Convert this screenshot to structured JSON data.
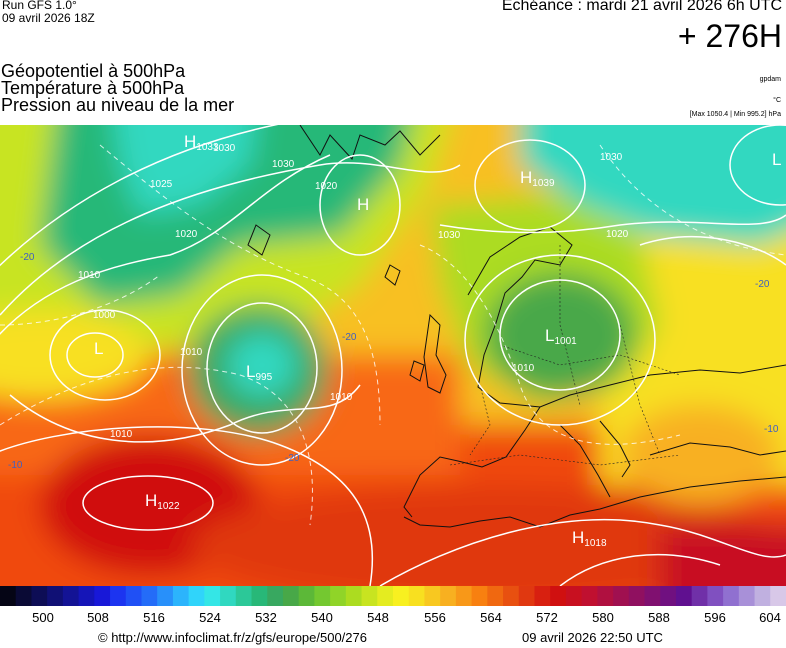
{
  "header": {
    "run_label": "Run GFS 1.0°",
    "run_date": "09 avril 2026 18Z",
    "valid_label": "Echéance : mardi 21 avril 2026 6h UTC",
    "lead_time": "+ 276H",
    "titles": [
      "Géopotentiel à 500hPa",
      "Température à 500hPa",
      "Pression au niveau de la mer"
    ],
    "unit_gpdam": "gpdam",
    "unit_celsius": "°C",
    "pressure_range": "[Max 1050.4 | Min 995.2] hPa"
  },
  "pressure_centers": [
    {
      "type": "H",
      "value": "1033",
      "region": "greenland"
    },
    {
      "type": "H",
      "value": "",
      "region": "norwegian-sea"
    },
    {
      "type": "H",
      "value": "1039",
      "region": "northern-scandinavia"
    },
    {
      "type": "L",
      "value": "",
      "region": "north-russia"
    },
    {
      "type": "L",
      "value": "",
      "region": "labrador-sea"
    },
    {
      "type": "L",
      "value": "995",
      "region": "north-atlantic"
    },
    {
      "type": "L",
      "value": "1001",
      "region": "poland"
    },
    {
      "type": "H",
      "value": "1022",
      "region": "azores"
    },
    {
      "type": "H",
      "value": "1018",
      "region": "libya"
    }
  ],
  "isobar_labels": [
    "1030",
    "1030",
    "1025",
    "1020",
    "1030",
    "1020",
    "1010",
    "1000",
    "1010",
    "1010",
    "1010",
    "1030",
    "1020",
    "1010"
  ],
  "isotherm_labels": [
    "-20",
    "-20",
    "-20",
    "-10",
    "-10",
    "-20"
  ],
  "colorbar": {
    "colors": [
      "#050515",
      "#0a0a35",
      "#0d0d55",
      "#101075",
      "#131395",
      "#1515b8",
      "#1818d8",
      "#1c34f0",
      "#2050f5",
      "#246cf8",
      "#2890fa",
      "#2cb4fc",
      "#30d4fa",
      "#34e6e6",
      "#30d8c0",
      "#2cc898",
      "#28b878",
      "#38a860",
      "#48a848",
      "#5cb838",
      "#74c830",
      "#90d428",
      "#acdc20",
      "#c8e420",
      "#e4ec20",
      "#f8f020",
      "#f8e020",
      "#f8c820",
      "#f8b020",
      "#f89818",
      "#f88010",
      "#f06810",
      "#e85010",
      "#e03810",
      "#d82010",
      "#d01010",
      "#c81020",
      "#c01030",
      "#b01040",
      "#a01050",
      "#901060",
      "#801070",
      "#701080",
      "#601090",
      "#7030a8",
      "#8050c0",
      "#9070d0",
      "#a890d8",
      "#c0b0e0",
      "#d8c8e8"
    ],
    "ticks": [
      "500",
      "508",
      "516",
      "524",
      "532",
      "540",
      "548",
      "556",
      "564",
      "572",
      "580",
      "588",
      "596",
      "604"
    ]
  },
  "footer": {
    "source_url": "© http://www.infoclimat.fr/z/gfs/europe/500/276",
    "generated": "09 avril 2026 22:50 UTC"
  }
}
